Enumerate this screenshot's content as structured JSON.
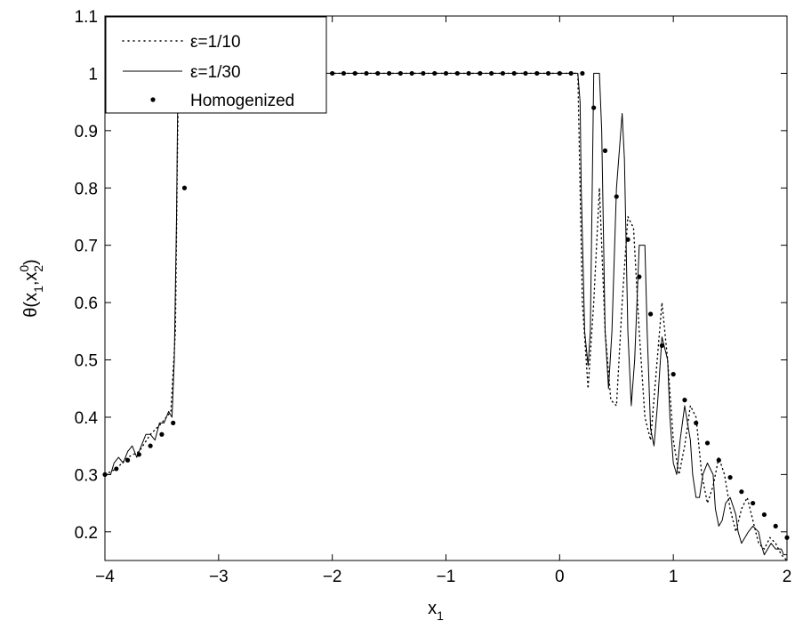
{
  "chart_data": {
    "type": "line",
    "title": "",
    "xlabel": "x",
    "xlabel_sub": "1",
    "ylabel_parts": {
      "pre": "θ(x",
      "sub1": "1",
      "mid": ",x",
      "sup": "0",
      "sub2": "2",
      "post": ")"
    },
    "xlim": [
      -4,
      2
    ],
    "ylim": [
      0.15,
      1.1
    ],
    "xticks": [
      -4,
      -3,
      -2,
      -1,
      0,
      1,
      2
    ],
    "xtick_labels": [
      "−4",
      "−3",
      "−2",
      "−1",
      "0",
      "1",
      "2"
    ],
    "yticks": [
      0.2,
      0.3,
      0.4,
      0.5,
      0.6,
      0.7,
      0.8,
      0.9,
      1.0,
      1.1
    ],
    "ytick_labels": [
      "0.2",
      "0.3",
      "0.4",
      "0.5",
      "0.6",
      "0.7",
      "0.8",
      "0.9",
      "1",
      "1.1"
    ],
    "grid": false,
    "legend_position": "top-left",
    "series": [
      {
        "name": "ε=1/10",
        "style": "dotted",
        "color": "#000000",
        "x": [
          -4.0,
          -3.9,
          -3.8,
          -3.7,
          -3.6,
          -3.5,
          -3.42,
          -3.38,
          -3.36,
          -3.35,
          -3.0,
          -2.0,
          -1.0,
          0.0,
          0.1,
          0.16,
          0.2,
          0.25,
          0.3,
          0.35,
          0.4,
          0.45,
          0.5,
          0.55,
          0.6,
          0.65,
          0.7,
          0.75,
          0.8,
          0.85,
          0.9,
          0.95,
          1.0,
          1.05,
          1.1,
          1.15,
          1.2,
          1.25,
          1.3,
          1.35,
          1.4,
          1.45,
          1.5,
          1.55,
          1.6,
          1.65,
          1.7,
          1.75,
          1.8,
          1.85,
          1.9,
          1.95,
          2.0
        ],
        "y": [
          0.3,
          0.31,
          0.33,
          0.34,
          0.37,
          0.39,
          0.41,
          0.55,
          0.9,
          1.0,
          1.0,
          1.0,
          1.0,
          1.0,
          1.0,
          1.0,
          0.6,
          0.45,
          0.6,
          0.8,
          0.55,
          0.43,
          0.42,
          0.6,
          0.75,
          0.73,
          0.55,
          0.4,
          0.36,
          0.48,
          0.6,
          0.5,
          0.36,
          0.3,
          0.35,
          0.42,
          0.4,
          0.3,
          0.25,
          0.28,
          0.33,
          0.3,
          0.24,
          0.2,
          0.24,
          0.26,
          0.22,
          0.18,
          0.17,
          0.19,
          0.18,
          0.16,
          0.15
        ]
      },
      {
        "name": "ε=1/30",
        "style": "solid",
        "color": "#000000",
        "x": [
          -4.0,
          -3.95,
          -3.92,
          -3.88,
          -3.84,
          -3.8,
          -3.76,
          -3.72,
          -3.68,
          -3.64,
          -3.6,
          -3.56,
          -3.52,
          -3.48,
          -3.44,
          -3.41,
          -3.39,
          -3.37,
          -3.36,
          -3.35,
          -3.0,
          -2.0,
          -1.0,
          0.0,
          0.1,
          0.15,
          0.16,
          0.18,
          0.19,
          0.22,
          0.25,
          0.27,
          0.3,
          0.33,
          0.35,
          0.37,
          0.4,
          0.43,
          0.46,
          0.5,
          0.55,
          0.57,
          0.6,
          0.63,
          0.66,
          0.7,
          0.75,
          0.77,
          0.8,
          0.83,
          0.86,
          0.9,
          0.95,
          0.97,
          1.0,
          1.03,
          1.06,
          1.1,
          1.15,
          1.17,
          1.2,
          1.23,
          1.26,
          1.3,
          1.35,
          1.37,
          1.4,
          1.43,
          1.46,
          1.5,
          1.55,
          1.57,
          1.6,
          1.63,
          1.66,
          1.7,
          1.75,
          1.77,
          1.8,
          1.83,
          1.86,
          1.9,
          1.95,
          1.97,
          2.0
        ],
        "y": [
          0.3,
          0.3,
          0.32,
          0.33,
          0.32,
          0.34,
          0.35,
          0.33,
          0.35,
          0.37,
          0.37,
          0.36,
          0.39,
          0.39,
          0.41,
          0.4,
          0.5,
          0.75,
          0.95,
          1.0,
          1.0,
          1.0,
          1.0,
          1.0,
          1.0,
          1.0,
          1.0,
          0.95,
          0.8,
          0.55,
          0.49,
          0.55,
          1.0,
          1.0,
          1.0,
          0.9,
          0.55,
          0.45,
          0.55,
          0.8,
          0.93,
          0.85,
          0.55,
          0.42,
          0.5,
          0.7,
          0.7,
          0.55,
          0.38,
          0.35,
          0.42,
          0.54,
          0.5,
          0.4,
          0.32,
          0.3,
          0.36,
          0.42,
          0.36,
          0.3,
          0.26,
          0.26,
          0.3,
          0.32,
          0.3,
          0.24,
          0.21,
          0.22,
          0.25,
          0.26,
          0.23,
          0.2,
          0.18,
          0.19,
          0.2,
          0.21,
          0.2,
          0.18,
          0.16,
          0.17,
          0.18,
          0.17,
          0.17,
          0.16,
          0.16
        ]
      },
      {
        "name": "Homogenized",
        "style": "markers",
        "color": "#000000",
        "x": [
          -4.0,
          -3.9,
          -3.8,
          -3.7,
          -3.6,
          -3.5,
          -3.4,
          -3.3,
          -3.2,
          -3.1,
          -3.0,
          -2.9,
          -2.8,
          -2.7,
          -2.6,
          -2.5,
          -2.4,
          -2.3,
          -2.2,
          -2.1,
          -2.0,
          -1.9,
          -1.8,
          -1.7,
          -1.6,
          -1.5,
          -1.4,
          -1.3,
          -1.2,
          -1.1,
          -1.0,
          -0.9,
          -0.8,
          -0.7,
          -0.6,
          -0.5,
          -0.4,
          -0.3,
          -0.2,
          -0.1,
          0.0,
          0.1,
          0.2,
          0.3,
          0.4,
          0.5,
          0.6,
          0.7,
          0.8,
          0.9,
          1.0,
          1.1,
          1.2,
          1.3,
          1.4,
          1.5,
          1.6,
          1.7,
          1.8,
          1.9,
          2.0
        ],
        "y": [
          0.3,
          0.31,
          0.325,
          0.335,
          0.35,
          0.37,
          0.39,
          0.8,
          1.0,
          1.0,
          1.0,
          1.0,
          1.0,
          1.0,
          1.0,
          1.0,
          1.0,
          1.0,
          1.0,
          1.0,
          1.0,
          1.0,
          1.0,
          1.0,
          1.0,
          1.0,
          1.0,
          1.0,
          1.0,
          1.0,
          1.0,
          1.0,
          1.0,
          1.0,
          1.0,
          1.0,
          1.0,
          1.0,
          1.0,
          1.0,
          1.0,
          1.0,
          1.0,
          0.94,
          0.865,
          0.785,
          0.71,
          0.645,
          0.58,
          0.525,
          0.475,
          0.43,
          0.39,
          0.355,
          0.325,
          0.295,
          0.27,
          0.25,
          0.23,
          0.21,
          0.19
        ]
      }
    ]
  }
}
